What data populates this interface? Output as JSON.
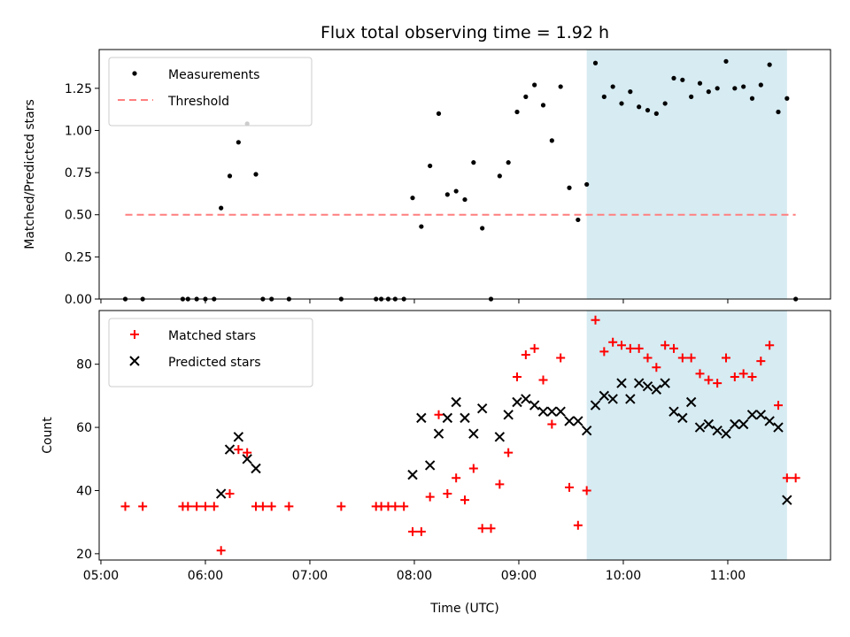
{
  "chart_data": {
    "type": "scatter",
    "title": "Flux total observing time = 1.92 h",
    "xlabel": "Time (UTC)",
    "x_ticks": [
      "05:00",
      "06:00",
      "07:00",
      "08:00",
      "09:00",
      "10:00",
      "11:00"
    ],
    "xlim": [
      "04:59",
      "11:59"
    ],
    "highlight_span": {
      "start": "09:39",
      "end": "11:34",
      "color": "#add8e6"
    },
    "panels": [
      {
        "ylabel": "Matched/Predicted stars",
        "ylim": [
          0.0,
          1.48
        ],
        "y_ticks": [
          "0.00",
          "0.25",
          "0.50",
          "0.75",
          "1.00",
          "1.25"
        ],
        "legend_position": "top-left",
        "series": [
          {
            "name": "Measurements",
            "marker": "dot",
            "color": "#000000",
            "points": [
              [
                "05:14",
                0.0
              ],
              [
                "05:24",
                0.0
              ],
              [
                "05:47",
                0.0
              ],
              [
                "05:50",
                0.0
              ],
              [
                "05:55",
                0.0
              ],
              [
                "06:00",
                0.0
              ],
              [
                "06:05",
                0.0
              ],
              [
                "06:09",
                0.54
              ],
              [
                "06:14",
                0.73
              ],
              [
                "06:19",
                0.93
              ],
              [
                "06:24",
                1.04
              ],
              [
                "06:29",
                0.74
              ],
              [
                "06:33",
                0.0
              ],
              [
                "06:38",
                0.0
              ],
              [
                "06:48",
                0.0
              ],
              [
                "07:18",
                0.0
              ],
              [
                "07:38",
                0.0
              ],
              [
                "07:41",
                0.0
              ],
              [
                "07:45",
                0.0
              ],
              [
                "07:49",
                0.0
              ],
              [
                "07:54",
                0.0
              ],
              [
                "07:59",
                0.6
              ],
              [
                "08:04",
                0.43
              ],
              [
                "08:09",
                0.79
              ],
              [
                "08:14",
                1.1
              ],
              [
                "08:19",
                0.62
              ],
              [
                "08:24",
                0.64
              ],
              [
                "08:29",
                0.59
              ],
              [
                "08:34",
                0.81
              ],
              [
                "08:39",
                0.42
              ],
              [
                "08:44",
                0.0
              ],
              [
                "08:49",
                0.73
              ],
              [
                "08:54",
                0.81
              ],
              [
                "08:59",
                1.11
              ],
              [
                "09:04",
                1.2
              ],
              [
                "09:09",
                1.27
              ],
              [
                "09:14",
                1.15
              ],
              [
                "09:19",
                0.94
              ],
              [
                "09:24",
                1.26
              ],
              [
                "09:29",
                0.66
              ],
              [
                "09:34",
                0.47
              ],
              [
                "09:39",
                0.68
              ],
              [
                "09:44",
                1.4
              ],
              [
                "09:49",
                1.2
              ],
              [
                "09:54",
                1.26
              ],
              [
                "09:59",
                1.16
              ],
              [
                "10:04",
                1.23
              ],
              [
                "10:09",
                1.14
              ],
              [
                "10:14",
                1.12
              ],
              [
                "10:19",
                1.1
              ],
              [
                "10:24",
                1.16
              ],
              [
                "10:29",
                1.31
              ],
              [
                "10:34",
                1.3
              ],
              [
                "10:39",
                1.2
              ],
              [
                "10:44",
                1.28
              ],
              [
                "10:49",
                1.23
              ],
              [
                "10:54",
                1.25
              ],
              [
                "10:59",
                1.41
              ],
              [
                "11:04",
                1.25
              ],
              [
                "11:09",
                1.26
              ],
              [
                "11:14",
                1.19
              ],
              [
                "11:19",
                1.27
              ],
              [
                "11:24",
                1.39
              ],
              [
                "11:29",
                1.11
              ],
              [
                "11:34",
                1.19
              ],
              [
                "11:39",
                0.0
              ]
            ]
          },
          {
            "name": "Threshold",
            "marker": "dashed-line",
            "color": "#ff7f7f",
            "points": [
              [
                "05:14",
                0.5
              ],
              [
                "11:39",
                0.5
              ]
            ]
          }
        ]
      },
      {
        "ylabel": "Count",
        "ylim": [
          18,
          97
        ],
        "y_ticks": [
          "20",
          "40",
          "60",
          "80"
        ],
        "legend_position": "top-left",
        "series": [
          {
            "name": "Matched stars",
            "marker": "plus",
            "color": "#ff0000",
            "points": [
              [
                "05:14",
                35
              ],
              [
                "05:24",
                35
              ],
              [
                "05:47",
                35
              ],
              [
                "05:50",
                35
              ],
              [
                "05:55",
                35
              ],
              [
                "06:00",
                35
              ],
              [
                "06:05",
                35
              ],
              [
                "06:09",
                21
              ],
              [
                "06:14",
                39
              ],
              [
                "06:19",
                53
              ],
              [
                "06:24",
                52
              ],
              [
                "06:29",
                35
              ],
              [
                "06:33",
                35
              ],
              [
                "06:38",
                35
              ],
              [
                "06:48",
                35
              ],
              [
                "07:18",
                35
              ],
              [
                "07:38",
                35
              ],
              [
                "07:41",
                35
              ],
              [
                "07:45",
                35
              ],
              [
                "07:49",
                35
              ],
              [
                "07:54",
                35
              ],
              [
                "07:59",
                27
              ],
              [
                "08:04",
                27
              ],
              [
                "08:09",
                38
              ],
              [
                "08:14",
                64
              ],
              [
                "08:19",
                39
              ],
              [
                "08:24",
                44
              ],
              [
                "08:29",
                37
              ],
              [
                "08:34",
                47
              ],
              [
                "08:39",
                28
              ],
              [
                "08:44",
                28
              ],
              [
                "08:49",
                42
              ],
              [
                "08:54",
                52
              ],
              [
                "08:59",
                76
              ],
              [
                "09:04",
                83
              ],
              [
                "09:09",
                85
              ],
              [
                "09:14",
                75
              ],
              [
                "09:19",
                61
              ],
              [
                "09:24",
                82
              ],
              [
                "09:29",
                41
              ],
              [
                "09:34",
                29
              ],
              [
                "09:39",
                40
              ],
              [
                "09:44",
                94
              ],
              [
                "09:49",
                84
              ],
              [
                "09:54",
                87
              ],
              [
                "09:59",
                86
              ],
              [
                "10:04",
                85
              ],
              [
                "10:09",
                85
              ],
              [
                "10:14",
                82
              ],
              [
                "10:19",
                79
              ],
              [
                "10:24",
                86
              ],
              [
                "10:29",
                85
              ],
              [
                "10:34",
                82
              ],
              [
                "10:39",
                82
              ],
              [
                "10:44",
                77
              ],
              [
                "10:49",
                75
              ],
              [
                "10:54",
                74
              ],
              [
                "10:59",
                82
              ],
              [
                "11:04",
                76
              ],
              [
                "11:09",
                77
              ],
              [
                "11:14",
                76
              ],
              [
                "11:19",
                81
              ],
              [
                "11:24",
                86
              ],
              [
                "11:29",
                67
              ],
              [
                "11:34",
                44
              ],
              [
                "11:39",
                44
              ]
            ]
          },
          {
            "name": "Predicted stars",
            "marker": "x",
            "color": "#000000",
            "points": [
              [
                "06:09",
                39
              ],
              [
                "06:14",
                53
              ],
              [
                "06:19",
                57
              ],
              [
                "06:24",
                50
              ],
              [
                "06:29",
                47
              ],
              [
                "07:59",
                45
              ],
              [
                "08:04",
                63
              ],
              [
                "08:09",
                48
              ],
              [
                "08:14",
                58
              ],
              [
                "08:19",
                63
              ],
              [
                "08:24",
                68
              ],
              [
                "08:29",
                63
              ],
              [
                "08:34",
                58
              ],
              [
                "08:39",
                66
              ],
              [
                "08:49",
                57
              ],
              [
                "08:54",
                64
              ],
              [
                "08:59",
                68
              ],
              [
                "09:04",
                69
              ],
              [
                "09:09",
                67
              ],
              [
                "09:14",
                65
              ],
              [
                "09:19",
                65
              ],
              [
                "09:24",
                65
              ],
              [
                "09:29",
                62
              ],
              [
                "09:34",
                62
              ],
              [
                "09:39",
                59
              ],
              [
                "09:44",
                67
              ],
              [
                "09:49",
                70
              ],
              [
                "09:54",
                69
              ],
              [
                "09:59",
                74
              ],
              [
                "10:04",
                69
              ],
              [
                "10:09",
                74
              ],
              [
                "10:14",
                73
              ],
              [
                "10:19",
                72
              ],
              [
                "10:24",
                74
              ],
              [
                "10:29",
                65
              ],
              [
                "10:34",
                63
              ],
              [
                "10:39",
                68
              ],
              [
                "10:44",
                60
              ],
              [
                "10:49",
                61
              ],
              [
                "10:54",
                59
              ],
              [
                "10:59",
                58
              ],
              [
                "11:04",
                61
              ],
              [
                "11:09",
                61
              ],
              [
                "11:14",
                64
              ],
              [
                "11:19",
                64
              ],
              [
                "11:24",
                62
              ],
              [
                "11:29",
                60
              ],
              [
                "11:34",
                37
              ]
            ]
          }
        ]
      }
    ]
  }
}
